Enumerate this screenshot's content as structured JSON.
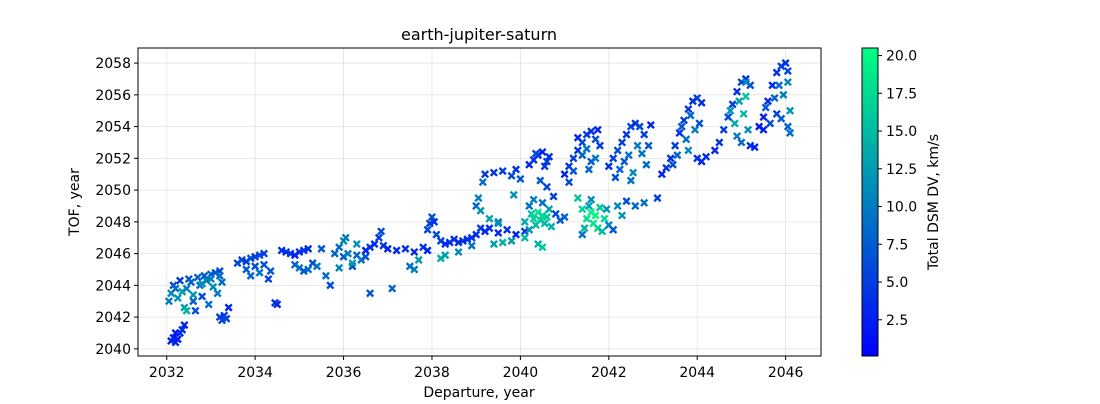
{
  "chart_data": {
    "type": "scatter",
    "title": "earth-jupiter-saturn",
    "xlabel": "Departure, year",
    "ylabel": "TOF, year",
    "xlim": [
      2031.35,
      2046.8
    ],
    "ylim": [
      2039.55,
      2058.95
    ],
    "xticks": [
      "2032",
      "2034",
      "2036",
      "2038",
      "2040",
      "2042",
      "2044",
      "2046"
    ],
    "yticks": [
      "2040",
      "2042",
      "2044",
      "2046",
      "2048",
      "2050",
      "2052",
      "2054",
      "2056",
      "2058"
    ],
    "grid": true,
    "marker": "x",
    "colorbar": {
      "label": "Total DSM DV, km/s",
      "min": 0.1,
      "max": 20.5,
      "ticks": [
        "2.5",
        "5.0",
        "7.5",
        "10.0",
        "12.5",
        "15.0",
        "17.5",
        "20.0"
      ],
      "colormap_low": "#0000ff",
      "colormap_high": "#00ff80"
    },
    "points": [
      [
        2032.1,
        2040.5,
        3.0
      ],
      [
        2032.15,
        2040.7,
        2.5
      ],
      [
        2032.2,
        2040.4,
        3.5
      ],
      [
        2032.25,
        2040.6,
        2.0
      ],
      [
        2032.3,
        2041.0,
        3.0
      ],
      [
        2032.35,
        2041.2,
        4.0
      ],
      [
        2032.4,
        2041.5,
        3.0
      ],
      [
        2032.2,
        2041.0,
        2.5
      ],
      [
        2032.05,
        2043.0,
        10.0
      ],
      [
        2032.1,
        2043.5,
        11.0
      ],
      [
        2032.15,
        2044.0,
        6.0
      ],
      [
        2032.2,
        2043.8,
        9.0
      ],
      [
        2032.25,
        2043.2,
        12.0
      ],
      [
        2032.3,
        2044.3,
        5.0
      ],
      [
        2032.35,
        2043.6,
        13.0
      ],
      [
        2032.4,
        2042.6,
        12.5
      ],
      [
        2032.45,
        2042.4,
        14.0
      ],
      [
        2032.5,
        2044.4,
        6.5
      ],
      [
        2032.55,
        2044.2,
        8.0
      ],
      [
        2032.6,
        2043.0,
        7.0
      ],
      [
        2032.65,
        2042.4,
        6.0
      ],
      [
        2032.7,
        2044.5,
        8.0
      ],
      [
        2032.75,
        2044.0,
        9.0
      ],
      [
        2032.8,
        2043.3,
        6.0
      ],
      [
        2032.85,
        2044.6,
        7.5
      ],
      [
        2032.9,
        2044.3,
        10.0
      ],
      [
        2032.95,
        2042.8,
        9.0
      ],
      [
        2033.0,
        2044.7,
        8.0
      ],
      [
        2033.05,
        2043.9,
        11.0
      ],
      [
        2033.1,
        2044.8,
        7.0
      ],
      [
        2033.15,
        2043.5,
        9.5
      ],
      [
        2033.2,
        2044.9,
        6.0
      ],
      [
        2033.25,
        2044.2,
        9.0
      ],
      [
        2032.45,
        2043.8,
        10.5
      ],
      [
        2032.6,
        2043.4,
        12.0
      ],
      [
        2032.8,
        2044.1,
        11.5
      ],
      [
        2033.0,
        2044.4,
        10.0
      ],
      [
        2033.2,
        2044.6,
        8.5
      ],
      [
        2033.2,
        2042.0,
        5.0
      ],
      [
        2033.25,
        2041.8,
        6.0
      ],
      [
        2033.3,
        2042.1,
        4.5
      ],
      [
        2033.35,
        2041.9,
        5.5
      ],
      [
        2033.4,
        2042.6,
        3.0
      ],
      [
        2033.6,
        2045.4,
        5.5
      ],
      [
        2033.7,
        2045.6,
        6.0
      ],
      [
        2033.8,
        2045.5,
        5.0
      ],
      [
        2033.9,
        2045.7,
        6.5
      ],
      [
        2034.0,
        2045.8,
        5.0
      ],
      [
        2034.1,
        2045.9,
        6.0
      ],
      [
        2034.2,
        2046.0,
        5.5
      ],
      [
        2033.8,
        2045.0,
        7.0
      ],
      [
        2033.9,
        2044.6,
        8.0
      ],
      [
        2034.0,
        2045.2,
        6.0
      ],
      [
        2034.1,
        2044.8,
        9.0
      ],
      [
        2034.2,
        2045.3,
        6.5
      ],
      [
        2034.3,
        2044.4,
        5.0
      ],
      [
        2034.35,
        2044.9,
        7.0
      ],
      [
        2034.45,
        2042.9,
        4.0
      ],
      [
        2034.5,
        2042.8,
        3.5
      ],
      [
        2034.6,
        2046.2,
        4.0
      ],
      [
        2034.7,
        2046.1,
        3.5
      ],
      [
        2034.8,
        2046.0,
        4.5
      ],
      [
        2034.9,
        2045.9,
        3.0
      ],
      [
        2035.0,
        2046.1,
        3.5
      ],
      [
        2035.1,
        2046.2,
        4.0
      ],
      [
        2035.2,
        2046.3,
        3.5
      ],
      [
        2034.9,
        2045.3,
        8.0
      ],
      [
        2035.0,
        2045.1,
        9.0
      ],
      [
        2035.1,
        2044.9,
        7.0
      ],
      [
        2035.2,
        2045.0,
        8.5
      ],
      [
        2035.3,
        2045.4,
        6.0
      ],
      [
        2035.4,
        2045.2,
        9.5
      ],
      [
        2035.5,
        2046.3,
        7.0
      ],
      [
        2035.6,
        2044.6,
        9.0
      ],
      [
        2035.7,
        2044.0,
        6.0
      ],
      [
        2035.8,
        2046.0,
        8.0
      ],
      [
        2035.9,
        2045.1,
        10.5
      ],
      [
        2036.0,
        2045.8,
        7.0
      ],
      [
        2036.1,
        2046.0,
        10.0
      ],
      [
        2036.2,
        2045.2,
        6.0
      ],
      [
        2036.3,
        2045.9,
        8.5
      ],
      [
        2036.4,
        2045.6,
        9.0
      ],
      [
        2036.5,
        2045.8,
        7.0
      ],
      [
        2036.0,
        2046.8,
        11.0
      ],
      [
        2035.9,
        2046.4,
        8.0
      ],
      [
        2036.3,
        2046.6,
        12.0
      ],
      [
        2036.05,
        2047.0,
        10.0
      ],
      [
        2036.2,
        2045.4,
        13.0
      ],
      [
        2036.5,
        2046.2,
        3.0
      ],
      [
        2036.6,
        2046.4,
        4.0
      ],
      [
        2036.7,
        2046.6,
        3.5
      ],
      [
        2036.8,
        2047.0,
        5.0
      ],
      [
        2036.85,
        2047.4,
        6.0
      ],
      [
        2036.9,
        2046.5,
        4.0
      ],
      [
        2037.0,
        2046.3,
        3.0
      ],
      [
        2037.2,
        2046.2,
        3.5
      ],
      [
        2037.4,
        2046.3,
        4.0
      ],
      [
        2037.6,
        2046.1,
        3.5
      ],
      [
        2037.8,
        2046.4,
        4.5
      ],
      [
        2037.9,
        2046.2,
        3.0
      ],
      [
        2036.6,
        2043.5,
        7.0
      ],
      [
        2037.1,
        2043.8,
        8.0
      ],
      [
        2037.5,
        2045.2,
        9.0
      ],
      [
        2037.7,
        2045.6,
        12.0
      ],
      [
        2037.6,
        2045.0,
        10.0
      ],
      [
        2037.9,
        2047.5,
        6.0
      ],
      [
        2037.95,
        2047.9,
        5.0
      ],
      [
        2038.0,
        2048.3,
        7.0
      ],
      [
        2038.05,
        2048.0,
        4.0
      ],
      [
        2038.1,
        2047.2,
        6.0
      ],
      [
        2038.2,
        2046.8,
        5.0
      ],
      [
        2038.3,
        2046.6,
        4.0
      ],
      [
        2038.4,
        2046.7,
        3.5
      ],
      [
        2038.5,
        2046.9,
        4.5
      ],
      [
        2038.6,
        2046.7,
        3.0
      ],
      [
        2038.7,
        2046.8,
        4.0
      ],
      [
        2038.8,
        2046.9,
        3.5
      ],
      [
        2038.9,
        2047.0,
        4.5
      ],
      [
        2039.0,
        2047.2,
        3.5
      ],
      [
        2038.2,
        2045.7,
        14.0
      ],
      [
        2038.3,
        2045.9,
        13.0
      ],
      [
        2038.6,
        2046.1,
        11.0
      ],
      [
        2038.9,
        2046.5,
        9.0
      ],
      [
        2039.1,
        2047.6,
        5.0
      ],
      [
        2039.2,
        2047.4,
        3.0
      ],
      [
        2039.3,
        2047.6,
        4.0
      ],
      [
        2039.5,
        2047.3,
        3.5
      ],
      [
        2039.7,
        2047.5,
        4.0
      ],
      [
        2039.9,
        2047.2,
        3.0
      ],
      [
        2040.1,
        2047.4,
        4.0
      ],
      [
        2039.4,
        2046.6,
        13.0
      ],
      [
        2039.6,
        2046.7,
        14.0
      ],
      [
        2039.8,
        2046.8,
        12.5
      ],
      [
        2040.1,
        2047.0,
        15.0
      ],
      [
        2040.4,
        2046.6,
        14.5
      ],
      [
        2040.5,
        2046.4,
        16.0
      ],
      [
        2039.5,
        2047.9,
        12.0
      ],
      [
        2039.0,
        2049.0,
        8.0
      ],
      [
        2039.05,
        2049.5,
        10.0
      ],
      [
        2039.1,
        2048.7,
        12.0
      ],
      [
        2039.15,
        2050.5,
        9.0
      ],
      [
        2039.2,
        2051.0,
        5.0
      ],
      [
        2039.4,
        2051.1,
        4.0
      ],
      [
        2039.6,
        2051.2,
        5.0
      ],
      [
        2039.8,
        2050.9,
        6.0
      ],
      [
        2039.3,
        2048.2,
        13.0
      ],
      [
        2039.5,
        2048.0,
        11.0
      ],
      [
        2039.9,
        2051.3,
        4.0
      ],
      [
        2040.0,
        2050.7,
        7.0
      ],
      [
        2039.85,
        2049.7,
        12.0
      ],
      [
        2040.1,
        2048.0,
        14.0
      ],
      [
        2040.2,
        2049.0,
        9.0
      ],
      [
        2040.25,
        2048.5,
        16.0
      ],
      [
        2040.3,
        2048.2,
        17.0
      ],
      [
        2040.35,
        2047.8,
        15.0
      ],
      [
        2040.4,
        2048.6,
        18.0
      ],
      [
        2040.45,
        2048.1,
        16.5
      ],
      [
        2040.5,
        2048.4,
        17.5
      ],
      [
        2040.55,
        2047.9,
        15.0
      ],
      [
        2040.6,
        2048.3,
        16.0
      ],
      [
        2040.65,
        2048.8,
        13.0
      ],
      [
        2040.7,
        2047.7,
        14.0
      ],
      [
        2040.3,
        2049.4,
        10.0
      ],
      [
        2040.5,
        2049.2,
        9.0
      ],
      [
        2040.2,
        2047.5,
        12.0
      ],
      [
        2040.8,
        2048.5,
        6.0
      ],
      [
        2040.9,
        2048.1,
        7.0
      ],
      [
        2041.0,
        2048.3,
        8.0
      ],
      [
        2040.75,
        2049.6,
        5.0
      ],
      [
        2040.2,
        2051.6,
        3.0
      ],
      [
        2040.3,
        2051.9,
        4.0
      ],
      [
        2040.4,
        2052.2,
        3.5
      ],
      [
        2040.5,
        2052.4,
        3.0
      ],
      [
        2040.6,
        2051.8,
        5.0
      ],
      [
        2040.65,
        2052.1,
        4.0
      ],
      [
        2040.35,
        2052.3,
        6.0
      ],
      [
        2040.55,
        2051.5,
        4.5
      ],
      [
        2040.45,
        2050.6,
        7.0
      ],
      [
        2040.6,
        2050.2,
        6.0
      ],
      [
        2041.0,
        2051.0,
        3.0
      ],
      [
        2041.1,
        2051.5,
        4.0
      ],
      [
        2041.2,
        2052.0,
        5.0
      ],
      [
        2041.3,
        2052.5,
        4.0
      ],
      [
        2041.4,
        2053.0,
        6.0
      ],
      [
        2041.5,
        2053.5,
        5.0
      ],
      [
        2041.6,
        2053.7,
        4.0
      ],
      [
        2041.7,
        2053.2,
        6.0
      ],
      [
        2041.8,
        2052.8,
        5.0
      ],
      [
        2041.2,
        2051.2,
        7.0
      ],
      [
        2041.4,
        2052.2,
        8.0
      ],
      [
        2041.6,
        2051.8,
        7.5
      ],
      [
        2041.3,
        2053.3,
        3.0
      ],
      [
        2041.5,
        2052.6,
        9.0
      ],
      [
        2041.7,
        2052.0,
        10.0
      ],
      [
        2041.1,
        2050.5,
        6.0
      ],
      [
        2041.55,
        2051.3,
        8.0
      ],
      [
        2041.75,
        2053.8,
        3.0
      ],
      [
        2041.3,
        2049.5,
        16.0
      ],
      [
        2041.4,
        2048.8,
        17.0
      ],
      [
        2041.5,
        2048.2,
        18.0
      ],
      [
        2041.6,
        2048.6,
        19.5
      ],
      [
        2041.65,
        2047.9,
        18.5
      ],
      [
        2041.7,
        2048.4,
        20.0
      ],
      [
        2041.75,
        2047.6,
        17.0
      ],
      [
        2041.8,
        2048.9,
        16.0
      ],
      [
        2041.85,
        2047.4,
        15.0
      ],
      [
        2041.9,
        2048.2,
        17.5
      ],
      [
        2041.55,
        2049.0,
        13.0
      ],
      [
        2041.45,
        2047.6,
        14.5
      ],
      [
        2041.95,
        2048.8,
        12.0
      ],
      [
        2042.0,
        2047.8,
        10.0
      ],
      [
        2041.6,
        2049.4,
        11.0
      ],
      [
        2042.1,
        2047.5,
        7.0
      ],
      [
        2042.2,
        2049.0,
        11.0
      ],
      [
        2042.4,
        2049.3,
        6.0
      ],
      [
        2042.6,
        2049.0,
        8.0
      ],
      [
        2042.8,
        2049.2,
        9.0
      ],
      [
        2043.1,
        2049.5,
        5.0
      ],
      [
        2042.3,
        2048.4,
        12.0
      ],
      [
        2041.4,
        2047.2,
        9.0
      ],
      [
        2042.0,
        2051.5,
        4.0
      ],
      [
        2042.1,
        2052.0,
        5.0
      ],
      [
        2042.2,
        2052.5,
        6.0
      ],
      [
        2042.3,
        2053.0,
        5.0
      ],
      [
        2042.4,
        2053.5,
        4.0
      ],
      [
        2042.5,
        2054.0,
        5.5
      ],
      [
        2042.6,
        2054.2,
        4.0
      ],
      [
        2042.7,
        2054.0,
        6.0
      ],
      [
        2042.8,
        2053.5,
        5.0
      ],
      [
        2042.25,
        2051.3,
        8.0
      ],
      [
        2042.45,
        2052.2,
        9.0
      ],
      [
        2042.65,
        2052.8,
        10.0
      ],
      [
        2042.35,
        2051.8,
        7.0
      ],
      [
        2042.55,
        2051.1,
        11.0
      ],
      [
        2042.75,
        2052.3,
        9.5
      ],
      [
        2042.85,
        2051.6,
        8.0
      ],
      [
        2042.15,
        2050.8,
        6.0
      ],
      [
        2042.9,
        2052.8,
        7.0
      ],
      [
        2042.5,
        2050.6,
        9.0
      ],
      [
        2042.95,
        2054.1,
        3.0
      ],
      [
        2043.2,
        2051.0,
        3.0
      ],
      [
        2043.3,
        2051.4,
        4.0
      ],
      [
        2043.4,
        2052.0,
        3.5
      ],
      [
        2043.5,
        2052.8,
        5.0
      ],
      [
        2043.6,
        2053.6,
        4.0
      ],
      [
        2043.7,
        2054.4,
        5.0
      ],
      [
        2043.8,
        2055.1,
        4.5
      ],
      [
        2043.9,
        2055.6,
        4.0
      ],
      [
        2044.0,
        2055.8,
        5.0
      ],
      [
        2044.1,
        2055.5,
        3.5
      ],
      [
        2043.65,
        2054.0,
        7.0
      ],
      [
        2043.75,
        2053.2,
        9.0
      ],
      [
        2043.85,
        2054.7,
        8.0
      ],
      [
        2043.95,
        2053.8,
        10.0
      ],
      [
        2043.55,
        2052.2,
        8.0
      ],
      [
        2044.05,
        2054.2,
        6.0
      ],
      [
        2043.45,
        2051.6,
        6.5
      ],
      [
        2044.0,
        2052.0,
        4.0
      ],
      [
        2044.1,
        2051.8,
        3.0
      ],
      [
        2044.2,
        2052.1,
        3.5
      ],
      [
        2043.8,
        2052.5,
        11.0
      ],
      [
        2044.4,
        2052.5,
        3.0
      ],
      [
        2044.5,
        2053.0,
        4.0
      ],
      [
        2044.6,
        2053.8,
        5.0
      ],
      [
        2044.7,
        2054.6,
        6.0
      ],
      [
        2044.8,
        2055.4,
        5.0
      ],
      [
        2044.9,
        2056.2,
        4.0
      ],
      [
        2045.0,
        2056.8,
        5.0
      ],
      [
        2045.1,
        2057.0,
        4.0
      ],
      [
        2045.2,
        2056.6,
        6.0
      ],
      [
        2044.75,
        2055.0,
        12.0
      ],
      [
        2044.85,
        2054.2,
        14.0
      ],
      [
        2044.95,
        2055.6,
        13.0
      ],
      [
        2045.05,
        2054.8,
        15.0
      ],
      [
        2045.15,
        2053.8,
        12.0
      ],
      [
        2045.1,
        2055.9,
        16.0
      ],
      [
        2044.9,
        2053.4,
        10.0
      ],
      [
        2045.0,
        2053.0,
        8.0
      ],
      [
        2045.2,
        2052.8,
        4.0
      ],
      [
        2045.3,
        2052.7,
        3.0
      ],
      [
        2045.1,
        2056.8,
        11.0
      ],
      [
        2045.4,
        2054.0,
        2.0
      ],
      [
        2045.5,
        2054.6,
        3.0
      ],
      [
        2045.6,
        2055.6,
        4.0
      ],
      [
        2045.7,
        2056.6,
        3.5
      ],
      [
        2045.8,
        2057.4,
        4.0
      ],
      [
        2045.9,
        2057.8,
        5.0
      ],
      [
        2046.0,
        2058.0,
        4.0
      ],
      [
        2046.05,
        2057.5,
        6.0
      ],
      [
        2045.55,
        2055.2,
        7.0
      ],
      [
        2045.75,
        2055.8,
        8.0
      ],
      [
        2045.85,
        2056.6,
        9.0
      ],
      [
        2045.95,
        2056.0,
        10.0
      ],
      [
        2046.05,
        2056.8,
        11.0
      ],
      [
        2045.65,
        2054.2,
        6.0
      ],
      [
        2045.8,
        2054.8,
        5.0
      ],
      [
        2046.05,
        2054.0,
        8.0
      ],
      [
        2046.1,
        2055.0,
        12.0
      ],
      [
        2046.1,
        2053.6,
        9.0
      ],
      [
        2045.5,
        2053.8,
        3.0
      ],
      [
        2045.9,
        2054.5,
        7.0
      ]
    ]
  }
}
